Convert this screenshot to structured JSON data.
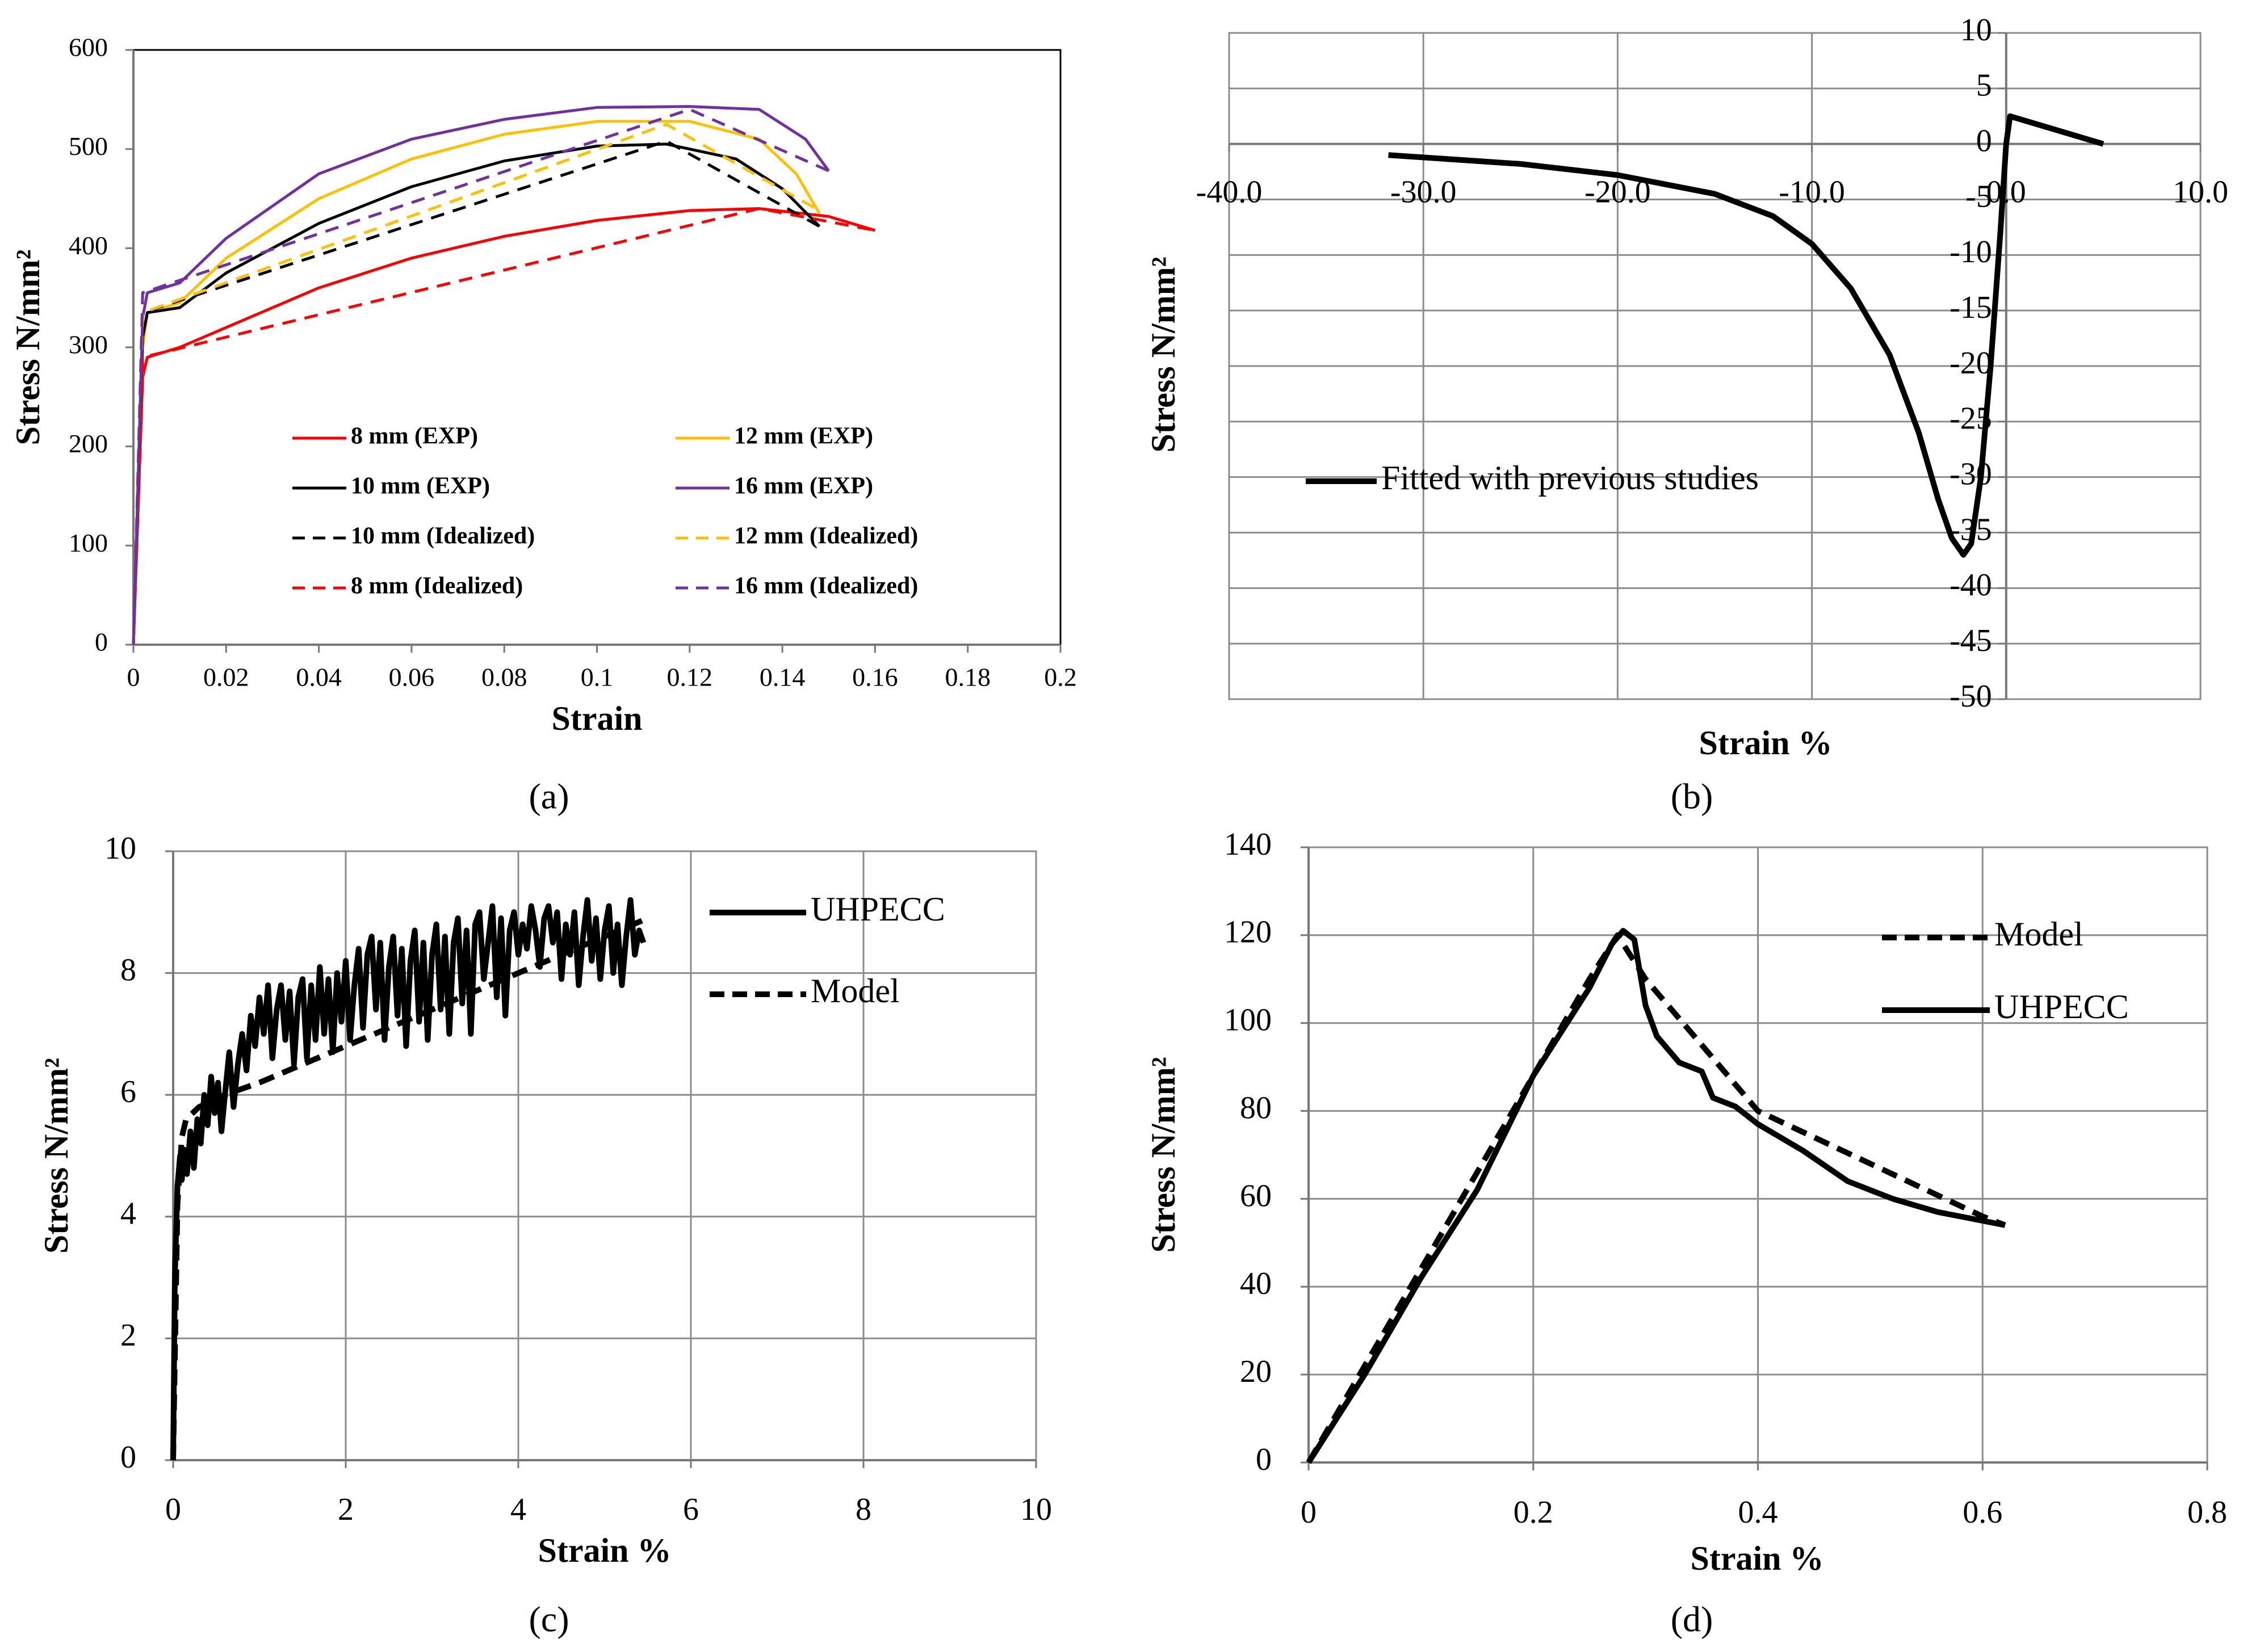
{
  "figure": {
    "panel_labels": {
      "a": "(a)",
      "b": "(b)",
      "c": "(c)",
      "d": "(d)"
    }
  },
  "chart_data": [
    {
      "id": "a",
      "type": "line",
      "xlabel": "Strain",
      "ylabel": "Stress N/mm²",
      "xlim": [
        0,
        0.2
      ],
      "ylim": [
        0,
        600
      ],
      "xticks": [
        0,
        0.02,
        0.04,
        0.06,
        0.08,
        0.1,
        0.12,
        0.14,
        0.16,
        0.18,
        0.2
      ],
      "xtick_labels": [
        "0",
        "0.02",
        "0.04",
        "0.06",
        "0.08",
        "0.1",
        "0.12",
        "0.14",
        "0.16",
        "0.18",
        "0.2"
      ],
      "yticks": [
        0,
        100,
        200,
        300,
        400,
        500,
        600
      ],
      "ytick_labels": [
        "0",
        "100",
        "200",
        "300",
        "400",
        "500",
        "600"
      ],
      "grid": false,
      "legend_columns": 2,
      "series": [
        {
          "name": "8 mm (EXP)",
          "color": "#ff0000",
          "dash": false,
          "x": [
            0,
            0.002,
            0.003,
            0.01,
            0.02,
            0.04,
            0.06,
            0.08,
            0.1,
            0.12,
            0.135,
            0.15,
            0.16
          ],
          "y": [
            0,
            270,
            290,
            300,
            320,
            360,
            390,
            412,
            428,
            438,
            440,
            432,
            418
          ]
        },
        {
          "name": "12 mm (EXP)",
          "color": "#ffc000",
          "dash": false,
          "x": [
            0,
            0.002,
            0.003,
            0.01,
            0.02,
            0.04,
            0.06,
            0.08,
            0.1,
            0.12,
            0.135,
            0.143,
            0.148
          ],
          "y": [
            0,
            300,
            335,
            345,
            390,
            450,
            490,
            515,
            528,
            528,
            510,
            475,
            435
          ]
        },
        {
          "name": "10 mm (EXP)",
          "color": "#000000",
          "dash": false,
          "x": [
            0,
            0.002,
            0.003,
            0.01,
            0.02,
            0.04,
            0.06,
            0.08,
            0.1,
            0.115,
            0.13,
            0.14,
            0.148
          ],
          "y": [
            0,
            310,
            335,
            340,
            375,
            425,
            462,
            488,
            503,
            505,
            490,
            460,
            422
          ]
        },
        {
          "name": "16 mm (EXP)",
          "color": "#7030a0",
          "dash": false,
          "x": [
            0,
            0.002,
            0.003,
            0.01,
            0.02,
            0.04,
            0.06,
            0.08,
            0.1,
            0.12,
            0.135,
            0.145,
            0.15
          ],
          "y": [
            0,
            330,
            355,
            365,
            410,
            475,
            510,
            530,
            542,
            543,
            540,
            510,
            478
          ]
        },
        {
          "name": "10 mm (Idealized)",
          "color": "#000000",
          "dash": true,
          "x": [
            0,
            0.002,
            0.115,
            0.148
          ],
          "y": [
            0,
            335,
            508,
            422
          ]
        },
        {
          "name": "12 mm (Idealized)",
          "color": "#ffc000",
          "dash": true,
          "x": [
            0,
            0.002,
            0.115,
            0.148
          ],
          "y": [
            0,
            335,
            525,
            438
          ]
        },
        {
          "name": "8 mm (Idealized)",
          "color": "#ff0000",
          "dash": true,
          "x": [
            0,
            0.002,
            0.135,
            0.16
          ],
          "y": [
            0,
            290,
            440,
            418
          ]
        },
        {
          "name": "16 mm (Idealized)",
          "color": "#7030a0",
          "dash": true,
          "x": [
            0,
            0.002,
            0.12,
            0.15
          ],
          "y": [
            0,
            355,
            540,
            478
          ]
        }
      ]
    },
    {
      "id": "b",
      "type": "line",
      "xlabel": "Strain %",
      "ylabel": "Stress N/mm²",
      "xlim": [
        -40,
        10
      ],
      "ylim": [
        -50,
        10
      ],
      "xticks": [
        -40,
        -30,
        -20,
        -10,
        0,
        10
      ],
      "xtick_labels": [
        "-40.0",
        "-30.0",
        "-20.0",
        "-10.0",
        "0.0",
        "10.0"
      ],
      "yticks": [
        10,
        5,
        0,
        -5,
        -10,
        -15,
        -20,
        -25,
        -30,
        -35,
        -40,
        -45,
        -50
      ],
      "ytick_labels": [
        "10",
        "5",
        "0",
        "-5",
        "-10",
        "-15",
        "-20",
        "-25",
        "-30",
        "-35",
        "-40",
        "-45",
        "-50"
      ],
      "grid": true,
      "legend_position": "left",
      "series": [
        {
          "name": "Fitted with previous studies",
          "color": "#000000",
          "dash": false,
          "x": [
            -31.8,
            -25,
            -20,
            -15,
            -12,
            -10,
            -8,
            -6,
            -4.5,
            -3.5,
            -2.8,
            -2.2,
            -1.8,
            -1.3,
            -0.8,
            -0.3,
            0,
            0.2,
            5
          ],
          "y": [
            -1,
            -1.8,
            -2.8,
            -4.5,
            -6.5,
            -9,
            -13,
            -19,
            -26,
            -32,
            -35.5,
            -37,
            -36,
            -30,
            -20,
            -8,
            0,
            2.5,
            0
          ]
        }
      ]
    },
    {
      "id": "c",
      "type": "line",
      "xlabel": "Strain %",
      "ylabel": "Stress N/mm²",
      "xlim": [
        0,
        10
      ],
      "ylim": [
        0,
        10
      ],
      "xticks": [
        0,
        2,
        4,
        6,
        8,
        10
      ],
      "xtick_labels": [
        "0",
        "2",
        "4",
        "6",
        "8",
        "10"
      ],
      "yticks": [
        0,
        2,
        4,
        6,
        8,
        10
      ],
      "ytick_labels": [
        "0",
        "2",
        "4",
        "6",
        "8",
        "10"
      ],
      "grid": true,
      "legend_position": "top-right",
      "series": [
        {
          "name": "UHPECC",
          "color": "#000000",
          "dash": false,
          "x": [
            0,
            0.02,
            0.05,
            0.08,
            0.1,
            0.13,
            0.16,
            0.2,
            0.24,
            0.28,
            0.32,
            0.36,
            0.4,
            0.44,
            0.48,
            0.52,
            0.56,
            0.6,
            0.65,
            0.7,
            0.75,
            0.8,
            0.85,
            0.9,
            0.95,
            1.0,
            1.05,
            1.1,
            1.15,
            1.2,
            1.25,
            1.3,
            1.35,
            1.4,
            1.45,
            1.5,
            1.55,
            1.6,
            1.65,
            1.7,
            1.75,
            1.8,
            1.85,
            1.9,
            1.95,
            2.0,
            2.05,
            2.1,
            2.15,
            2.2,
            2.25,
            2.3,
            2.35,
            2.4,
            2.45,
            2.5,
            2.55,
            2.6,
            2.65,
            2.7,
            2.75,
            2.8,
            2.85,
            2.9,
            2.95,
            3.0,
            3.05,
            3.1,
            3.15,
            3.2,
            3.25,
            3.3,
            3.35,
            3.4,
            3.45,
            3.5,
            3.55,
            3.6,
            3.65,
            3.7,
            3.75,
            3.8,
            3.85,
            3.9,
            3.95,
            4.0,
            4.05,
            4.1,
            4.15,
            4.2,
            4.25,
            4.3,
            4.35,
            4.4,
            4.45,
            4.5,
            4.55,
            4.6,
            4.65,
            4.7,
            4.75,
            4.8,
            4.85,
            4.9,
            4.95,
            5.0,
            5.05,
            5.1,
            5.15,
            5.2,
            5.25,
            5.3,
            5.35,
            5.4,
            5.45
          ],
          "y": [
            0,
            3.0,
            4.5,
            5.0,
            4.6,
            5.1,
            4.7,
            5.4,
            4.8,
            5.6,
            5.2,
            6.0,
            5.5,
            6.3,
            5.7,
            6.2,
            5.4,
            6.0,
            6.7,
            5.8,
            6.5,
            7.0,
            6.4,
            7.3,
            6.8,
            7.6,
            7.0,
            7.8,
            6.6,
            7.4,
            7.8,
            6.9,
            7.7,
            6.5,
            7.6,
            7.9,
            6.6,
            7.8,
            6.9,
            8.1,
            7.0,
            7.9,
            6.7,
            8.0,
            7.2,
            8.2,
            6.9,
            7.8,
            8.4,
            7.1,
            8.3,
            8.6,
            7.4,
            8.5,
            6.9,
            8.1,
            8.6,
            7.3,
            8.4,
            6.8,
            8.2,
            8.7,
            7.2,
            8.5,
            6.9,
            8.3,
            8.8,
            7.4,
            8.6,
            7.0,
            8.5,
            8.9,
            7.5,
            8.7,
            7.0,
            8.8,
            9.0,
            7.9,
            8.5,
            9.1,
            7.6,
            8.9,
            7.3,
            8.7,
            9.0,
            8.3,
            8.8,
            8.4,
            9.1,
            8.7,
            8.1,
            8.9,
            9.1,
            8.5,
            9.0,
            7.9,
            8.8,
            8.3,
            9.0,
            7.8,
            8.6,
            9.2,
            8.2,
            8.9,
            7.9,
            8.7,
            9.1,
            8.0,
            8.8,
            7.8,
            8.6,
            9.2,
            8.3,
            8.7,
            8.5
          ]
        },
        {
          "name": "Model",
          "color": "#000000",
          "dash": true,
          "x": [
            0,
            0.05,
            0.1,
            0.15,
            0.3,
            0.6,
            1.0,
            1.5,
            2.0,
            2.5,
            3.0,
            3.5,
            4.0,
            4.5,
            5.0,
            5.5
          ],
          "y": [
            0,
            4.2,
            5.3,
            5.6,
            5.8,
            6.0,
            6.2,
            6.5,
            6.8,
            7.1,
            7.4,
            7.7,
            8.0,
            8.3,
            8.6,
            8.9
          ]
        }
      ]
    },
    {
      "id": "d",
      "type": "line",
      "xlabel": "Strain %",
      "ylabel": "Stress N/mm²",
      "xlim": [
        0,
        0.8
      ],
      "ylim": [
        0,
        140
      ],
      "xticks": [
        0,
        0.2,
        0.4,
        0.6,
        0.8
      ],
      "xtick_labels": [
        "0",
        "0.2",
        "0.4",
        "0.6",
        "0.8"
      ],
      "yticks": [
        0,
        20,
        40,
        60,
        80,
        100,
        120,
        140
      ],
      "ytick_labels": [
        "0",
        "20",
        "40",
        "60",
        "80",
        "100",
        "120",
        "140"
      ],
      "grid": true,
      "legend_position": "top-right",
      "series": [
        {
          "name": "Model",
          "color": "#000000",
          "dash": true,
          "x": [
            0,
            0.05,
            0.1,
            0.15,
            0.2,
            0.25,
            0.275,
            0.3,
            0.35,
            0.4,
            0.5,
            0.6,
            0.62
          ],
          "y": [
            0,
            22,
            44,
            66,
            88,
            110,
            120,
            110,
            95,
            80,
            68,
            56,
            54
          ]
        },
        {
          "name": "UHPECC",
          "color": "#000000",
          "dash": false,
          "x": [
            0,
            0.05,
            0.1,
            0.15,
            0.2,
            0.25,
            0.27,
            0.28,
            0.29,
            0.3,
            0.31,
            0.33,
            0.35,
            0.36,
            0.38,
            0.4,
            0.44,
            0.48,
            0.52,
            0.56,
            0.6,
            0.62
          ],
          "y": [
            0,
            20,
            42,
            62,
            88,
            108,
            118,
            121,
            119,
            104,
            97,
            91,
            89,
            83,
            81,
            77,
            71,
            64,
            60,
            57,
            55,
            54
          ]
        }
      ]
    }
  ]
}
